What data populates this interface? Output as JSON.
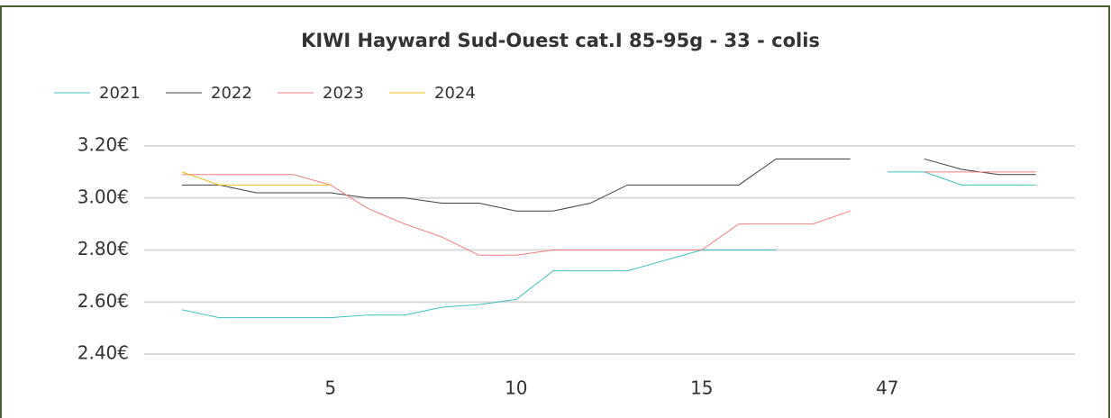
{
  "chart_data": {
    "type": "line",
    "title": "KIWI Hayward Sud-Ouest cat.I  85-95g - 33 - colis",
    "categories": [
      null,
      null,
      null,
      null,
      "5",
      null,
      null,
      null,
      null,
      "10",
      null,
      null,
      null,
      null,
      "15",
      null,
      null,
      null,
      null,
      "47",
      null,
      null,
      null,
      null
    ],
    "series": [
      {
        "name": "2021",
        "color": "#3fc1c0",
        "values": [
          2.57,
          2.54,
          2.54,
          2.54,
          2.54,
          2.55,
          2.55,
          2.58,
          2.59,
          2.61,
          2.72,
          2.72,
          2.72,
          2.76,
          2.8,
          2.8,
          2.8,
          null,
          null,
          3.1,
          3.1,
          3.05,
          3.05,
          3.05
        ]
      },
      {
        "name": "2022",
        "color": "#404040",
        "values": [
          3.05,
          3.05,
          3.02,
          3.02,
          3.02,
          3.0,
          3.0,
          2.98,
          2.98,
          2.95,
          2.95,
          2.98,
          3.05,
          3.05,
          3.05,
          3.05,
          3.15,
          3.15,
          3.15,
          null,
          3.15,
          3.11,
          3.09,
          3.09
        ]
      },
      {
        "name": "2023",
        "color": "#f08080",
        "values": [
          3.09,
          3.09,
          3.09,
          3.09,
          3.05,
          2.96,
          2.9,
          2.85,
          2.78,
          2.78,
          2.8,
          2.8,
          2.8,
          2.8,
          2.8,
          2.9,
          2.9,
          2.9,
          2.95,
          null,
          3.1,
          3.1,
          3.1,
          3.1
        ]
      },
      {
        "name": "2024",
        "color": "#e8c21a",
        "values": [
          3.1,
          3.05,
          3.05,
          3.05,
          3.05,
          null,
          null,
          null,
          null,
          null,
          null,
          null,
          null,
          null,
          null,
          null,
          null,
          null,
          null,
          null,
          null,
          null,
          null,
          null
        ]
      }
    ],
    "ylim": [
      2.4,
      3.2
    ],
    "yticks": [
      {
        "value": 2.4,
        "label": "2.40€"
      },
      {
        "value": 2.6,
        "label": "2.60€"
      },
      {
        "value": 2.8,
        "label": "2.80€"
      },
      {
        "value": 3.0,
        "label": "3.00€"
      },
      {
        "value": 3.2,
        "label": "3.20€"
      }
    ],
    "grid": true,
    "legend": "top-left"
  }
}
